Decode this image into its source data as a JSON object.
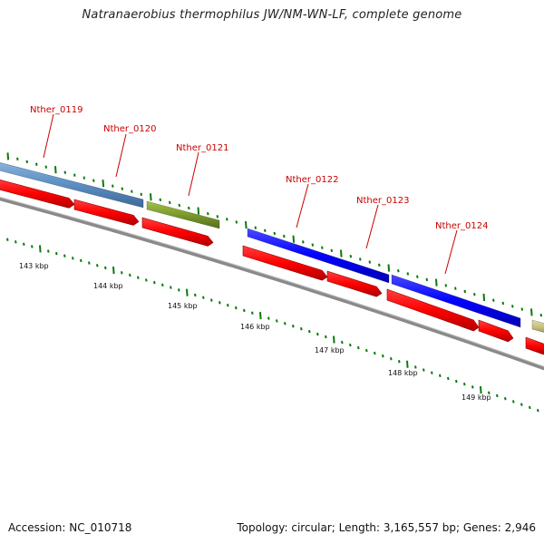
{
  "title": "Natranaerobius thermophilus JW/NM-WN-LF, complete genome",
  "footer": {
    "accession": "Accession: NC_010718",
    "summary": "Topology: circular; Length: 3,165,557 bp; Genes: 2,946"
  },
  "colors": {
    "background": "#ffffff",
    "label_red": "#cc0000",
    "cds_red": "#ff0000",
    "backbone_gray": "#8a8a8a",
    "tick_green": "#0a7a0a",
    "feature_steelblue": "#5b8ec4",
    "feature_olive": "#7a9a2a",
    "feature_blue": "#0000ff",
    "feature_khaki": "#c8c080"
  },
  "gene_labels": [
    {
      "name": "Nther_0119"
    },
    {
      "name": "Nther_0120"
    },
    {
      "name": "Nther_0121"
    },
    {
      "name": "Nther_0122"
    },
    {
      "name": "Nther_0123"
    },
    {
      "name": "Nther_0124"
    }
  ],
  "scale_labels": [
    "143 kbp",
    "144 kbp",
    "145 kbp",
    "146 kbp",
    "147 kbp",
    "148 kbp",
    "149 kbp"
  ]
}
